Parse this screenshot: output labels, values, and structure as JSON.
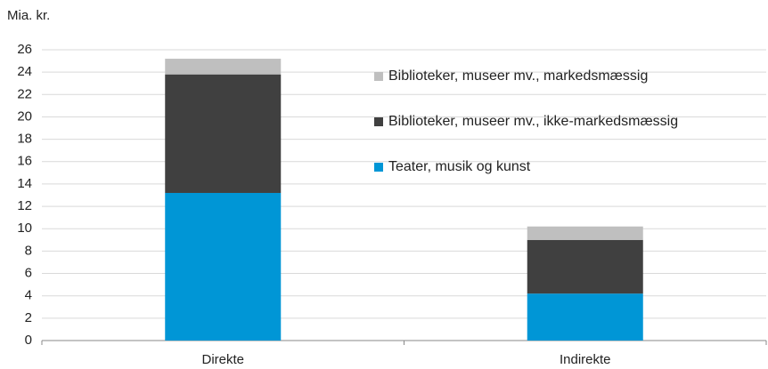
{
  "chart_data": {
    "type": "stacked_bar",
    "y_label": "Mia. kr.",
    "categories": [
      "Direkte",
      "Indirekte"
    ],
    "series": [
      {
        "name": "Teater, musik og kunst",
        "color": "#0096d6",
        "values": [
          13.2,
          4.2
        ]
      },
      {
        "name": "Biblioteker, museer mv., ikke-markedsmæssig",
        "color": "#404040",
        "values": [
          10.6,
          4.8
        ]
      },
      {
        "name": "Biblioteker, museer mv., markedsmæssig",
        "color": "#bfbfbf",
        "values": [
          1.4,
          1.2
        ]
      }
    ],
    "ylim": [
      0,
      26
    ],
    "yticks": [
      0,
      2,
      4,
      6,
      8,
      10,
      12,
      14,
      16,
      18,
      20,
      22,
      24,
      26
    ],
    "grid": true,
    "legend": "center"
  }
}
